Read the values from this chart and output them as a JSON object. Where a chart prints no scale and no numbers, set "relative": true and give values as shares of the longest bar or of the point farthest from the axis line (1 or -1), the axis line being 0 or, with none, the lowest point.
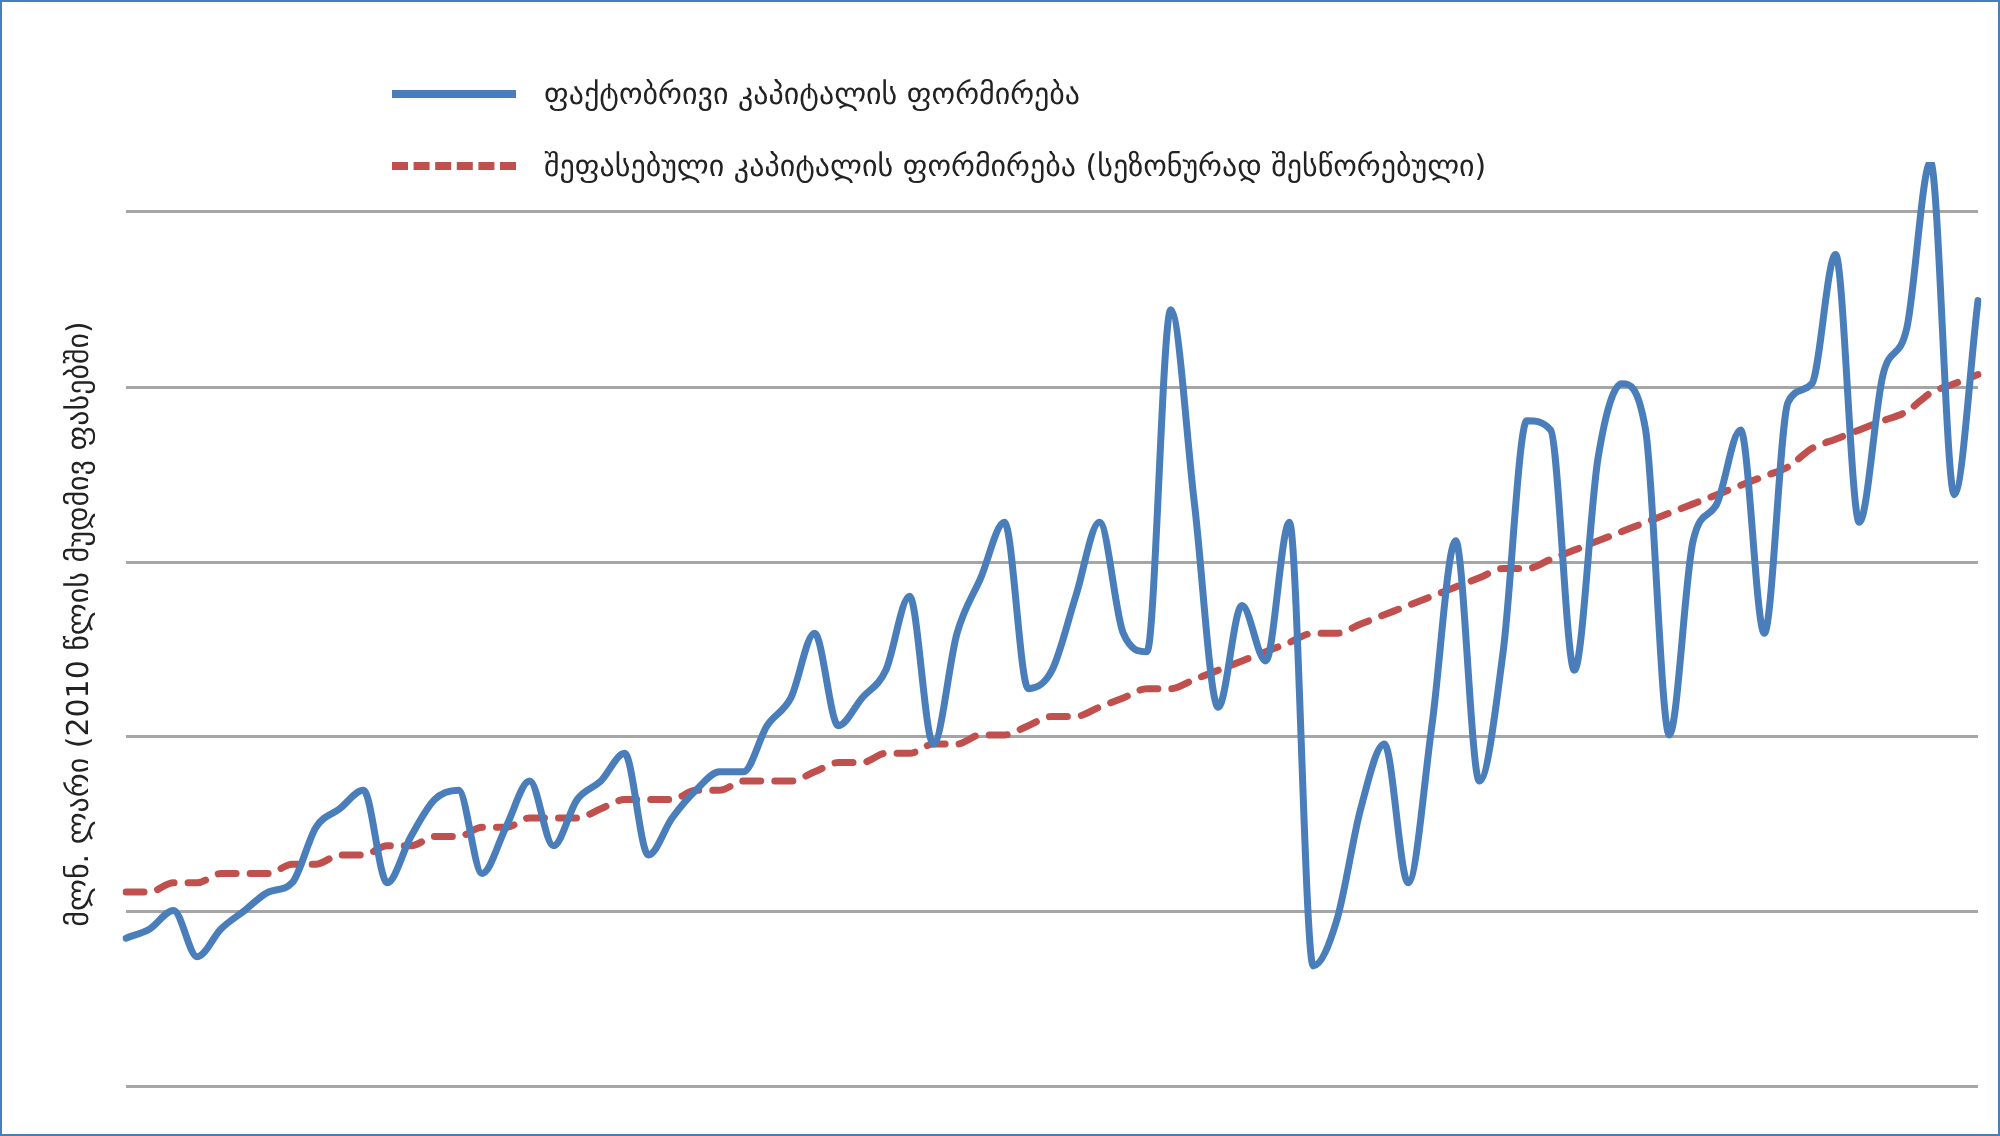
{
  "chart_data": {
    "type": "line",
    "ylabel": "მლნ. ლარი (2010 წლის მუდმივ ფასებში)",
    "relative": true,
    "grid": "y",
    "legend": "top",
    "marker": "none",
    "categories": [
      null,
      null,
      null,
      null,
      null,
      null,
      null,
      null,
      null,
      null,
      null,
      null,
      null,
      null,
      null,
      null,
      null,
      null,
      null,
      null,
      null,
      null,
      null,
      null,
      null,
      null,
      null,
      null,
      null,
      null,
      null,
      null,
      null,
      null,
      null,
      null,
      null,
      null,
      null,
      null,
      null,
      null,
      null,
      null,
      null,
      null,
      null,
      null,
      null,
      null,
      null,
      null,
      null,
      null,
      null,
      null,
      null,
      null,
      null,
      null,
      null,
      null,
      null,
      null,
      null,
      null,
      null,
      null,
      null,
      null,
      null,
      null,
      null,
      null,
      null,
      null,
      null,
      null,
      null
    ],
    "series": [
      {
        "name": "ფაქტობრივი კაპიტალის ფორმირება",
        "color": "#4a7ebb",
        "line_style": "solid",
        "values": [
          0.16,
          0.17,
          0.19,
          0.14,
          0.17,
          0.19,
          0.21,
          0.22,
          0.28,
          0.3,
          0.32,
          0.22,
          0.27,
          0.31,
          0.32,
          0.23,
          0.28,
          0.33,
          0.26,
          0.31,
          0.33,
          0.36,
          0.25,
          0.29,
          0.32,
          0.34,
          0.34,
          0.39,
          0.42,
          0.49,
          0.39,
          0.42,
          0.45,
          0.53,
          0.37,
          0.49,
          0.55,
          0.61,
          0.43,
          0.45,
          0.53,
          0.61,
          0.49,
          0.47,
          0.84,
          0.63,
          0.41,
          0.52,
          0.46,
          0.61,
          0.13,
          0.18,
          0.3,
          0.37,
          0.22,
          0.39,
          0.59,
          0.33,
          0.47,
          0.72,
          0.71,
          0.45,
          0.68,
          0.76,
          0.71,
          0.38,
          0.59,
          0.63,
          0.71,
          0.49,
          0.74,
          0.76,
          0.9,
          0.61,
          0.77,
          0.82,
          1,
          0.64,
          0.85
        ]
      },
      {
        "name": "შეფასებული კაპიტალის ფორმირება (სეზონურად შესწორებული)",
        "color": "#c0504d",
        "line_style": "dashed",
        "values": [
          0.21,
          0.21,
          0.22,
          0.22,
          0.23,
          0.23,
          0.23,
          0.24,
          0.24,
          0.25,
          0.25,
          0.26,
          0.26,
          0.27,
          0.27,
          0.28,
          0.28,
          0.29,
          0.29,
          0.29,
          0.3,
          0.31,
          0.31,
          0.31,
          0.32,
          0.32,
          0.33,
          0.33,
          0.33,
          0.34,
          0.35,
          0.35,
          0.36,
          0.36,
          0.37,
          0.37,
          0.38,
          0.38,
          0.39,
          0.4,
          0.4,
          0.41,
          0.42,
          0.43,
          0.43,
          0.44,
          0.45,
          0.46,
          0.47,
          0.48,
          0.49,
          0.49,
          0.5,
          0.51,
          0.52,
          0.53,
          0.54,
          0.55,
          0.56,
          0.56,
          0.57,
          0.58,
          0.59,
          0.6,
          0.61,
          0.62,
          0.63,
          0.64,
          0.65,
          0.66,
          0.67,
          0.69,
          0.7,
          0.71,
          0.72,
          0.73,
          0.75,
          0.76,
          0.77
        ]
      }
    ]
  }
}
